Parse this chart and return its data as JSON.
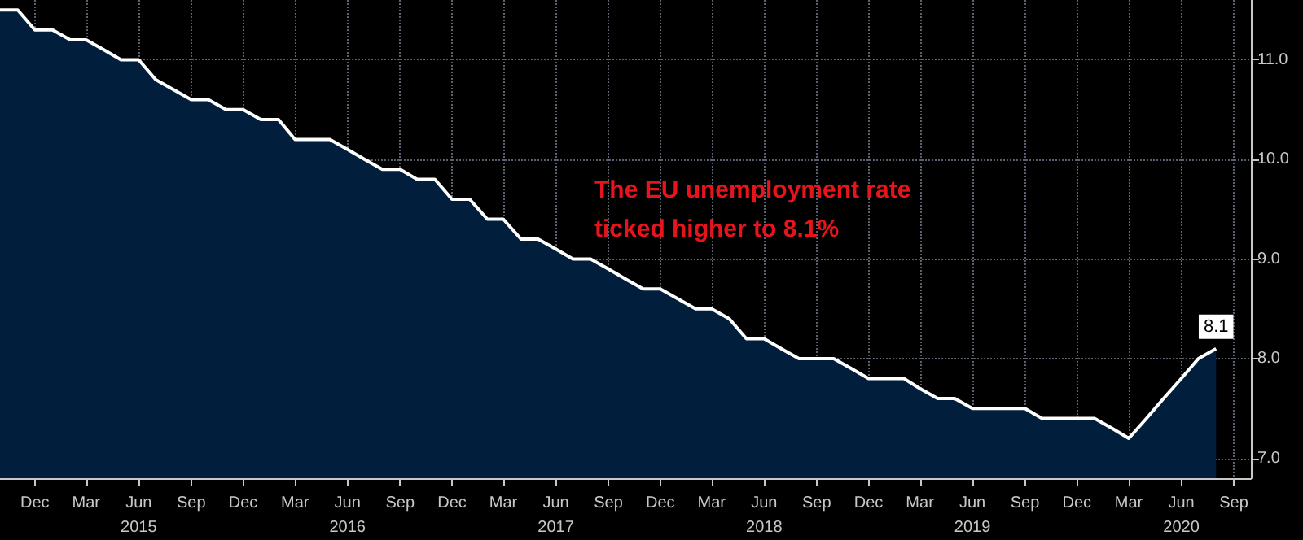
{
  "chart_data": {
    "type": "area",
    "x": [
      "2014-10",
      "2014-11",
      "2014-12",
      "2015-01",
      "2015-02",
      "2015-03",
      "2015-04",
      "2015-05",
      "2015-06",
      "2015-07",
      "2015-08",
      "2015-09",
      "2015-10",
      "2015-11",
      "2015-12",
      "2016-01",
      "2016-02",
      "2016-03",
      "2016-04",
      "2016-05",
      "2016-06",
      "2016-07",
      "2016-08",
      "2016-09",
      "2016-10",
      "2016-11",
      "2016-12",
      "2017-01",
      "2017-02",
      "2017-03",
      "2017-04",
      "2017-05",
      "2017-06",
      "2017-07",
      "2017-08",
      "2017-09",
      "2017-10",
      "2017-11",
      "2017-12",
      "2018-01",
      "2018-02",
      "2018-03",
      "2018-04",
      "2018-05",
      "2018-06",
      "2018-07",
      "2018-08",
      "2018-09",
      "2018-10",
      "2018-11",
      "2018-12",
      "2019-01",
      "2019-02",
      "2019-03",
      "2019-04",
      "2019-05",
      "2019-06",
      "2019-07",
      "2019-08",
      "2019-09",
      "2019-10",
      "2019-11",
      "2019-12",
      "2020-01",
      "2020-02",
      "2020-03",
      "2020-04",
      "2020-05",
      "2020-06",
      "2020-07",
      "2020-08"
    ],
    "series": [
      {
        "color": "#011e3c",
        "values": [
          11.5,
          11.5,
          11.3,
          11.3,
          11.2,
          11.2,
          11.1,
          11.0,
          11.0,
          10.8,
          10.7,
          10.6,
          10.6,
          10.5,
          10.5,
          10.4,
          10.4,
          10.2,
          10.2,
          10.2,
          10.1,
          10.0,
          9.9,
          9.9,
          9.8,
          9.8,
          9.6,
          9.6,
          9.4,
          9.4,
          9.2,
          9.2,
          9.1,
          9.0,
          9.0,
          8.9,
          8.8,
          8.7,
          8.7,
          8.6,
          8.5,
          8.5,
          8.4,
          8.2,
          8.2,
          8.1,
          8.0,
          8.0,
          8.0,
          7.9,
          7.8,
          7.8,
          7.8,
          7.7,
          7.6,
          7.6,
          7.5,
          7.5,
          7.5,
          7.5,
          7.4,
          7.4,
          7.4,
          7.4,
          7.3,
          7.2,
          7.4,
          7.6,
          7.8,
          8.0,
          8.1
        ],
        "value_labels": [
          null,
          null,
          null,
          null,
          null,
          null,
          null,
          null,
          null,
          null,
          null,
          null,
          null,
          null,
          null,
          null,
          null,
          null,
          null,
          null,
          null,
          null,
          null,
          null,
          null,
          null,
          null,
          null,
          null,
          null,
          null,
          null,
          null,
          null,
          null,
          null,
          null,
          null,
          null,
          null,
          null,
          null,
          null,
          null,
          null,
          null,
          null,
          null,
          null,
          null,
          null,
          null,
          null,
          null,
          null,
          null,
          null,
          null,
          null,
          null,
          null,
          null,
          null,
          null,
          null,
          null,
          null,
          null,
          null,
          null,
          "8.1"
        ]
      }
    ],
    "xlim": [
      "2014-10-01",
      "2020-10-01"
    ],
    "xticks": [
      {
        "value": "2014-12",
        "label": "Dec"
      },
      {
        "value": "2015-03",
        "label": "Mar"
      },
      {
        "value": "2015-06",
        "label": "Jun\n2015"
      },
      {
        "value": "2015-09",
        "label": "Sep"
      },
      {
        "value": "2015-12",
        "label": "Dec"
      },
      {
        "value": "2016-03",
        "label": "Mar"
      },
      {
        "value": "2016-06",
        "label": "Jun\n2016"
      },
      {
        "value": "2016-09",
        "label": "Sep"
      },
      {
        "value": "2016-12",
        "label": "Dec"
      },
      {
        "value": "2017-03",
        "label": "Mar"
      },
      {
        "value": "2017-06",
        "label": "Jun\n2017"
      },
      {
        "value": "2017-09",
        "label": "Sep"
      },
      {
        "value": "2017-12",
        "label": "Dec"
      },
      {
        "value": "2018-03",
        "label": "Mar"
      },
      {
        "value": "2018-06",
        "label": "Jun\n2018"
      },
      {
        "value": "2018-09",
        "label": "Sep"
      },
      {
        "value": "2018-12",
        "label": "Dec"
      },
      {
        "value": "2019-03",
        "label": "Mar"
      },
      {
        "value": "2019-06",
        "label": "Jun\n2019"
      },
      {
        "value": "2019-09",
        "label": "Sep"
      },
      {
        "value": "2019-12",
        "label": "Dec"
      },
      {
        "value": "2020-03",
        "label": "Mar"
      },
      {
        "value": "2020-06",
        "label": "Jun\n2020"
      },
      {
        "value": "2020-09",
        "label": "Sep"
      }
    ],
    "ylim": [
      6.8,
      11.6
    ],
    "yticks": [
      {
        "value": 7,
        "label": "7.0"
      },
      {
        "value": 8,
        "label": "8.0"
      },
      {
        "value": 9,
        "label": "9.0"
      },
      {
        "value": 10,
        "label": "10.0"
      },
      {
        "value": 11,
        "label": "11.0"
      }
    ],
    "grid": true,
    "annotations": [
      "The EU unemployment rate\nticked higher to 8.1%"
    ]
  }
}
